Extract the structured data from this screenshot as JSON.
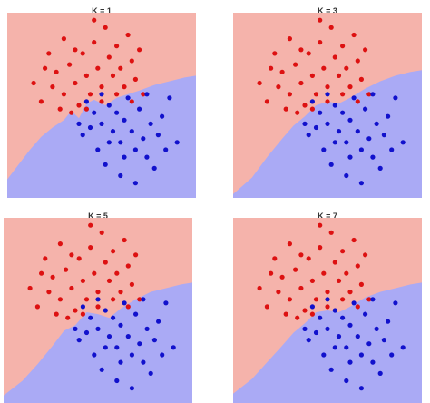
{
  "chart_data": [
    {
      "type": "scatter",
      "title": "K = 1",
      "k": 1,
      "xlim": [
        0,
        10
      ],
      "ylim": [
        0,
        10
      ],
      "colors": {
        "region_a": "#f5b3ab",
        "region_b": "#aaaaf5",
        "class_a": "#dd1111",
        "class_b": "#1111cc"
      },
      "boundary": [
        [
          0,
          1.0
        ],
        [
          0.6,
          1.8
        ],
        [
          1.2,
          2.6
        ],
        [
          1.8,
          3.3
        ],
        [
          2.4,
          3.8
        ],
        [
          3.0,
          4.2
        ],
        [
          3.4,
          4.7
        ],
        [
          3.8,
          4.3
        ],
        [
          4.2,
          5.1
        ],
        [
          4.6,
          5.3
        ],
        [
          5.2,
          5.0
        ],
        [
          5.8,
          5.4
        ],
        [
          6.4,
          5.6
        ],
        [
          7.0,
          5.8
        ],
        [
          7.8,
          6.1
        ],
        [
          8.6,
          6.3
        ],
        [
          9.4,
          6.5
        ],
        [
          10,
          6.6
        ]
      ]
    },
    {
      "type": "scatter",
      "title": "K = 3",
      "k": 3,
      "xlim": [
        0,
        10
      ],
      "ylim": [
        0,
        10
      ],
      "colors": {
        "region_a": "#f5b3ab",
        "region_b": "#aaaaf5",
        "class_a": "#dd1111",
        "class_b": "#1111cc"
      },
      "boundary": [
        [
          0,
          0.2
        ],
        [
          1.0,
          1.1
        ],
        [
          1.8,
          2.2
        ],
        [
          2.6,
          3.2
        ],
        [
          3.2,
          3.9
        ],
        [
          3.8,
          4.4
        ],
        [
          4.4,
          5.0
        ],
        [
          5.0,
          5.2
        ],
        [
          5.6,
          5.1
        ],
        [
          6.2,
          5.4
        ],
        [
          7.0,
          5.9
        ],
        [
          7.8,
          6.3
        ],
        [
          8.6,
          6.6
        ],
        [
          9.4,
          6.8
        ],
        [
          10,
          6.9
        ]
      ]
    },
    {
      "type": "scatter",
      "title": "K = 5",
      "k": 5,
      "xlim": [
        0,
        10
      ],
      "ylim": [
        0,
        10
      ],
      "colors": {
        "region_a": "#f5b3ab",
        "region_b": "#aaaaf5",
        "class_a": "#dd1111",
        "class_b": "#1111cc"
      },
      "boundary": [
        [
          0,
          0.4
        ],
        [
          1.0,
          1.2
        ],
        [
          1.8,
          2.1
        ],
        [
          2.6,
          3.1
        ],
        [
          3.2,
          3.9
        ],
        [
          3.8,
          4.2
        ],
        [
          4.4,
          4.9
        ],
        [
          5.0,
          4.8
        ],
        [
          5.6,
          4.6
        ],
        [
          6.2,
          5.1
        ],
        [
          7.0,
          5.6
        ],
        [
          7.8,
          6.0
        ],
        [
          8.6,
          6.2
        ],
        [
          9.4,
          6.4
        ],
        [
          10,
          6.5
        ]
      ]
    },
    {
      "type": "scatter",
      "title": "K = 7",
      "k": 7,
      "xlim": [
        0,
        10
      ],
      "ylim": [
        0,
        10
      ],
      "colors": {
        "region_a": "#f5b3ab",
        "region_b": "#aaaaf5",
        "class_a": "#dd1111",
        "class_b": "#1111cc"
      },
      "boundary": [
        [
          0,
          0.5
        ],
        [
          1.0,
          1.3
        ],
        [
          1.8,
          2.2
        ],
        [
          2.6,
          3.1
        ],
        [
          3.2,
          3.8
        ],
        [
          3.8,
          4.3
        ],
        [
          4.4,
          4.9
        ],
        [
          5.0,
          5.0
        ],
        [
          5.6,
          4.9
        ],
        [
          6.2,
          5.2
        ],
        [
          7.0,
          5.7
        ],
        [
          7.8,
          6.0
        ],
        [
          8.6,
          6.2
        ],
        [
          9.4,
          6.4
        ],
        [
          10,
          6.5
        ]
      ]
    }
  ],
  "points_a": [
    [
      1.4,
      6.2
    ],
    [
      1.8,
      5.2
    ],
    [
      2.2,
      7.8
    ],
    [
      2.6,
      6.8
    ],
    [
      3.0,
      5.6
    ],
    [
      3.0,
      8.6
    ],
    [
      3.3,
      7.2
    ],
    [
      3.6,
      6.2
    ],
    [
      3.8,
      5.0
    ],
    [
      4.0,
      7.8
    ],
    [
      4.2,
      6.6
    ],
    [
      4.4,
      5.6
    ],
    [
      4.6,
      8.4
    ],
    [
      4.8,
      7.0
    ],
    [
      5.0,
      6.0
    ],
    [
      5.2,
      9.2
    ],
    [
      5.4,
      7.6
    ],
    [
      5.6,
      6.6
    ],
    [
      5.8,
      8.2
    ],
    [
      6.0,
      7.0
    ],
    [
      6.2,
      6.0
    ],
    [
      6.4,
      8.8
    ],
    [
      6.6,
      7.4
    ],
    [
      6.8,
      6.4
    ],
    [
      7.0,
      8.0
    ],
    [
      7.2,
      5.6
    ],
    [
      2.8,
      4.8
    ],
    [
      3.4,
      4.6
    ],
    [
      4.2,
      4.8
    ],
    [
      5.0,
      5.2
    ],
    [
      2.4,
      6.0
    ],
    [
      2.0,
      7.0
    ],
    [
      4.6,
      9.6
    ],
    [
      3.6,
      8.0
    ],
    [
      5.8,
      5.6
    ],
    [
      6.6,
      5.2
    ]
  ],
  "points_b": [
    [
      4.2,
      5.2
    ],
    [
      4.6,
      4.6
    ],
    [
      5.0,
      4.0
    ],
    [
      5.4,
      5.0
    ],
    [
      5.6,
      3.6
    ],
    [
      5.8,
      4.6
    ],
    [
      6.0,
      3.0
    ],
    [
      6.2,
      4.2
    ],
    [
      6.4,
      5.4
    ],
    [
      6.6,
      3.6
    ],
    [
      6.8,
      2.6
    ],
    [
      7.0,
      4.8
    ],
    [
      7.2,
      3.2
    ],
    [
      7.4,
      2.2
    ],
    [
      7.6,
      4.0
    ],
    [
      7.8,
      1.6
    ],
    [
      8.0,
      3.4
    ],
    [
      8.4,
      2.6
    ],
    [
      4.8,
      2.6
    ],
    [
      5.2,
      1.8
    ],
    [
      6.0,
      1.2
    ],
    [
      6.8,
      0.8
    ],
    [
      5.4,
      3.0
    ],
    [
      8.2,
      4.4
    ],
    [
      9.0,
      3.0
    ],
    [
      8.6,
      5.4
    ],
    [
      4.0,
      3.4
    ],
    [
      5.0,
      5.6
    ],
    [
      7.4,
      5.6
    ],
    [
      6.2,
      2.2
    ],
    [
      4.4,
      3.8
    ],
    [
      3.8,
      4.0
    ]
  ]
}
